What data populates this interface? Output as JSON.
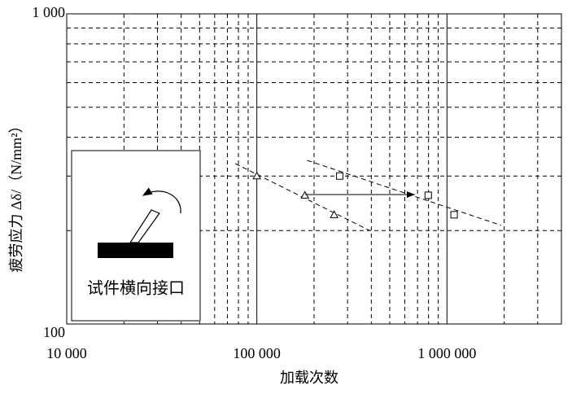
{
  "chart_data": {
    "type": "scatter",
    "xlabel": "加载次数",
    "ylabel": "疲劳应力 Δδ/（N/mm²）",
    "annotation": "试件横向接口",
    "xscale": "log",
    "yscale": "log",
    "xlim": [
      10000,
      4000000
    ],
    "ylim": [
      100,
      1000
    ],
    "xticks": [
      {
        "value": 10000,
        "label": "10 000"
      },
      {
        "value": 100000,
        "label": "100 000"
      },
      {
        "value": 1000000,
        "label": "1 000 000"
      }
    ],
    "yticks": [
      100,
      {
        "value": 1000,
        "label": "1 000"
      }
    ],
    "x_minor_ticks": [
      20000,
      30000,
      40000,
      50000,
      60000,
      70000,
      80000,
      90000,
      200000,
      300000,
      400000,
      500000,
      600000,
      700000,
      800000,
      900000,
      2000000,
      3000000
    ],
    "y_minor_ticks": [
      200,
      300,
      400,
      500,
      600,
      700,
      800,
      900
    ],
    "grid": true,
    "series": [
      {
        "marker": "triangle",
        "color": "#000000",
        "x": [
          100000,
          179000,
          255000
        ],
        "values": [
          300,
          260,
          225
        ]
      },
      {
        "marker": "square",
        "color": "#000000",
        "x": [
          273000,
          797000,
          1090000
        ],
        "values": [
          300,
          260,
          225
        ]
      }
    ],
    "fit_lines": [
      {
        "x": [
          77000,
          393000
        ],
        "values": [
          329,
          200
        ]
      },
      {
        "x": [
          184000,
          1930000
        ],
        "values": [
          337,
          208
        ]
      }
    ]
  }
}
